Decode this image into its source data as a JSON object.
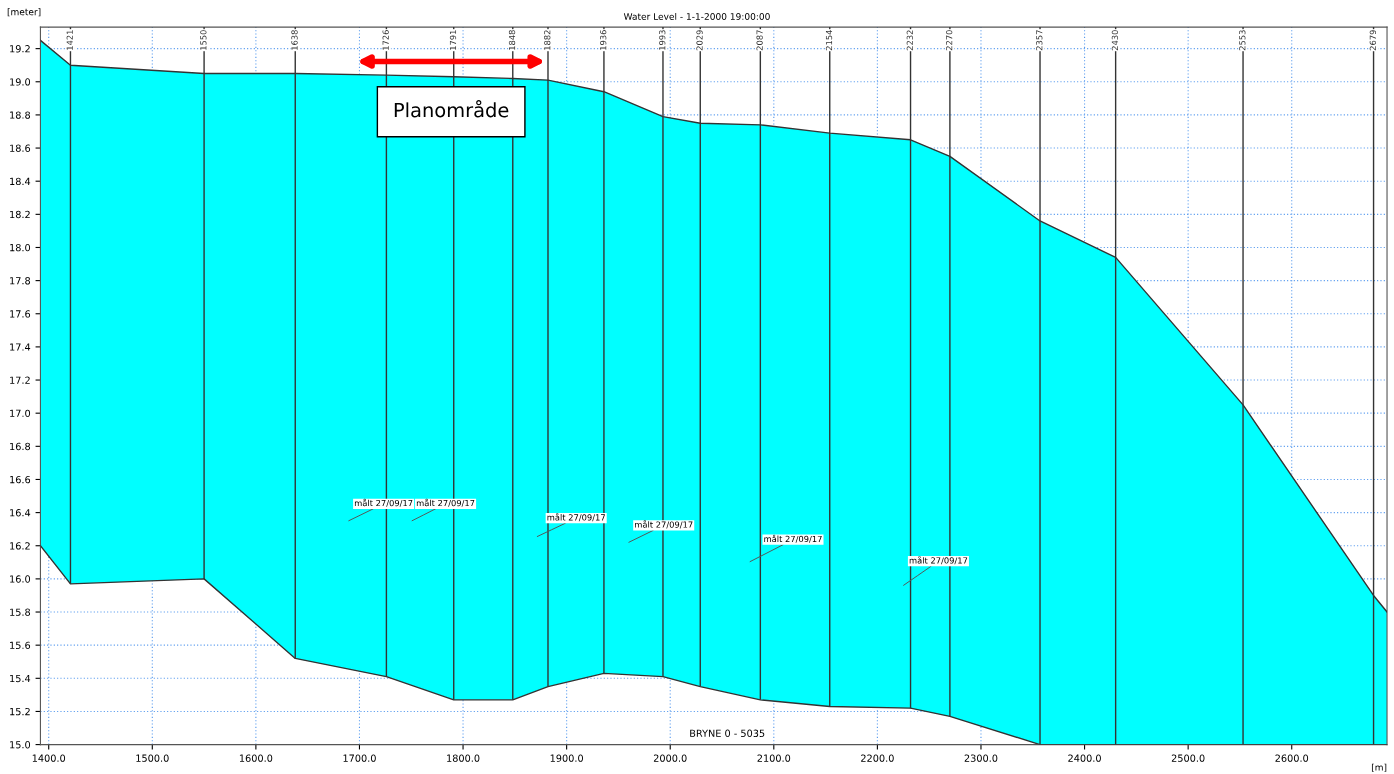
{
  "chart_data": {
    "type": "area",
    "title": "Water Level - 1-1-2000 19:00:00",
    "xlabel": "[m]",
    "ylabel": "[meter]",
    "x": [
      1392,
      1421,
      1550,
      1638,
      1726,
      1791,
      1848,
      1882,
      1936,
      1993,
      2029,
      2087,
      2154,
      2232,
      2270,
      2357,
      2430,
      2553,
      2679,
      2692
    ],
    "series": [
      {
        "color": "#00ffff",
        "values": [
          19.25,
          19.1,
          19.05,
          19.05,
          19.04,
          19.03,
          19.02,
          19.01,
          18.94,
          18.79,
          18.75,
          18.74,
          18.69,
          18.65,
          18.55,
          18.16,
          17.94,
          17.05,
          15.9,
          15.8
        ]
      },
      {
        "type": "line",
        "color": "#333333",
        "values": [
          16.2,
          15.97,
          16.0,
          15.52,
          15.41,
          15.27,
          15.27,
          15.35,
          15.43,
          15.41,
          15.35,
          15.27,
          15.23,
          15.22,
          15.17,
          15.0,
          15.0,
          15.0,
          15.0,
          15.0
        ]
      }
    ],
    "xlim": [
      1392,
      2692
    ],
    "ylim": [
      15.0,
      19.33
    ],
    "xticks": [
      {
        "value": 1400,
        "label": "1400.0"
      },
      {
        "value": 1500,
        "label": "1500.0"
      },
      {
        "value": 1600,
        "label": "1600.0"
      },
      {
        "value": 1700,
        "label": "1700.0"
      },
      {
        "value": 1800,
        "label": "1800.0"
      },
      {
        "value": 1900,
        "label": "1900.0"
      },
      {
        "value": 2000,
        "label": "2000.0"
      },
      {
        "value": 2100,
        "label": "2100.0"
      },
      {
        "value": 2200,
        "label": "2200.0"
      },
      {
        "value": 2300,
        "label": "2300.0"
      },
      {
        "value": 2400,
        "label": "2400.0"
      },
      {
        "value": 2500,
        "label": "2500.0"
      },
      {
        "value": 2600,
        "label": "2600.0"
      }
    ],
    "yticks": [
      {
        "value": 15,
        "label": "15.0"
      },
      15.2,
      15.4,
      15.6,
      15.8,
      {
        "value": 16,
        "label": "16.0"
      },
      16.2,
      16.4,
      16.6,
      16.8,
      {
        "value": 17,
        "label": "17.0"
      },
      17.2,
      17.4,
      17.6,
      17.8,
      {
        "value": 18,
        "label": "18.0"
      },
      18.2,
      18.4,
      18.6,
      18.8,
      {
        "value": 19,
        "label": "19.0"
      },
      19.2
    ],
    "grid": true,
    "ref_lines": [
      {
        "axis": "x",
        "value": 1421,
        "label": "1421"
      },
      {
        "axis": "x",
        "value": 1550,
        "label": "1550"
      },
      {
        "axis": "x",
        "value": 1638,
        "label": "1638"
      },
      {
        "axis": "x",
        "value": 1726,
        "label": "1726"
      },
      {
        "axis": "x",
        "value": 1791,
        "label": "1791"
      },
      {
        "axis": "x",
        "value": 1848,
        "label": "1848"
      },
      {
        "axis": "x",
        "value": 1882,
        "label": "1882"
      },
      {
        "axis": "x",
        "value": 1936,
        "label": "1936"
      },
      {
        "axis": "x",
        "value": 1993,
        "label": "1993"
      },
      {
        "axis": "x",
        "value": 2029,
        "label": "2029"
      },
      {
        "axis": "x",
        "value": 2087,
        "label": "2087"
      },
      {
        "axis": "x",
        "value": 2154,
        "label": "2154"
      },
      {
        "axis": "x",
        "value": 2232,
        "label": "2232"
      },
      {
        "axis": "x",
        "value": 2270,
        "label": "2270"
      },
      {
        "axis": "x",
        "value": 2357,
        "label": "2357"
      },
      {
        "axis": "x",
        "value": 2430,
        "label": "2430"
      },
      {
        "axis": "x",
        "value": 2553,
        "label": "2553"
      },
      {
        "axis": "x",
        "value": 2679,
        "label": "2679"
      }
    ],
    "annotations": [
      "Planområde",
      "målt 27/09/17",
      "målt 27/09/17",
      "målt 27/09/17",
      "målt 27/09/17",
      "målt 27/09/17",
      "målt 27/09/17",
      "BRYNE 0 - 5035"
    ]
  }
}
